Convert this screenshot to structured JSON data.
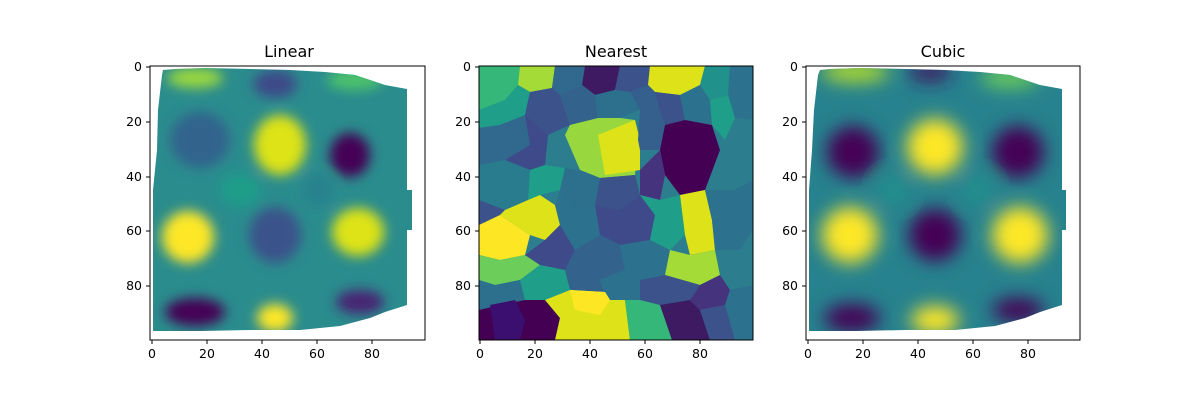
{
  "chart_data": [
    {
      "type": "heatmap",
      "title": "Linear",
      "method": "linear",
      "colormap": "viridis",
      "xlim": [
        0,
        99
      ],
      "ylim": [
        99,
        0
      ],
      "xticks": [
        "0",
        "20",
        "40",
        "60",
        "80"
      ],
      "yticks": [
        "0",
        "20",
        "40",
        "60",
        "80"
      ],
      "grid": false
    },
    {
      "type": "heatmap",
      "title": "Nearest",
      "method": "nearest",
      "colormap": "viridis",
      "xlim": [
        0,
        99
      ],
      "ylim": [
        99,
        0
      ],
      "xticks": [
        "0",
        "20",
        "40",
        "60",
        "80"
      ],
      "yticks": [
        "0",
        "20",
        "40",
        "60",
        "80"
      ],
      "grid": false
    },
    {
      "type": "heatmap",
      "title": "Cubic",
      "method": "cubic",
      "colormap": "viridis",
      "xlim": [
        0,
        99
      ],
      "ylim": [
        99,
        0
      ],
      "xticks": [
        "0",
        "20",
        "40",
        "60",
        "80"
      ],
      "yticks": [
        "0",
        "20",
        "40",
        "60",
        "80"
      ],
      "grid": false
    }
  ]
}
